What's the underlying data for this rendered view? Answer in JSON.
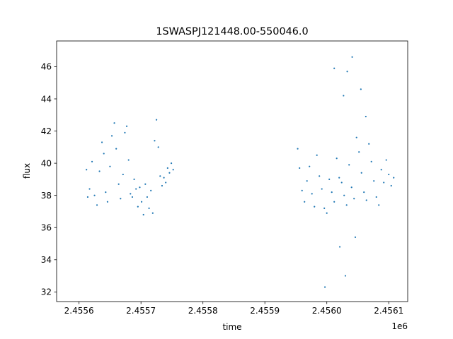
{
  "chart_data": {
    "type": "scatter",
    "title": "1SWASPJ121448.00-550046.0",
    "xlabel": "time",
    "ylabel": "flux",
    "x_offset_label": "1e6",
    "xlim": [
      2455563.8,
      2456130.6
    ],
    "ylim": [
      31.4,
      47.6
    ],
    "x_ticks": [
      2455600,
      2455700,
      2455800,
      2455900,
      2456000,
      2456100
    ],
    "x_tick_labels": [
      "2.4556",
      "2.4557",
      "2.4558",
      "2.4559",
      "2.4560",
      "2.4561"
    ],
    "y_ticks": [
      32,
      34,
      36,
      38,
      40,
      42,
      44,
      46
    ],
    "y_tick_labels": [
      "32",
      "34",
      "36",
      "38",
      "40",
      "42",
      "44",
      "46"
    ],
    "grid": false,
    "legend": "none",
    "marker_color": "#1f77b4",
    "series": [
      {
        "points": [
          [
            2455612,
            39.6
          ],
          [
            2455614,
            37.9
          ],
          [
            2455617,
            38.4
          ],
          [
            2455621,
            40.1
          ],
          [
            2455625,
            38.0
          ],
          [
            2455629,
            37.4
          ],
          [
            2455633,
            39.5
          ],
          [
            2455637,
            41.3
          ],
          [
            2455640,
            40.6
          ],
          [
            2455643,
            38.2
          ],
          [
            2455646,
            37.6
          ],
          [
            2455650,
            39.8
          ],
          [
            2455653,
            41.7
          ],
          [
            2455657,
            42.5
          ],
          [
            2455660,
            40.9
          ],
          [
            2455664,
            38.7
          ],
          [
            2455667,
            37.8
          ],
          [
            2455671,
            39.3
          ],
          [
            2455674,
            41.9
          ],
          [
            2455677,
            42.3
          ],
          [
            2455680,
            40.2
          ],
          [
            2455683,
            38.1
          ],
          [
            2455686,
            37.9
          ],
          [
            2455689,
            39.0
          ],
          [
            2455692,
            38.4
          ],
          [
            2455695,
            37.3
          ],
          [
            2455698,
            38.5
          ],
          [
            2455701,
            37.6
          ],
          [
            2455704,
            36.8
          ],
          [
            2455707,
            38.7
          ],
          [
            2455710,
            37.9
          ],
          [
            2455713,
            37.2
          ],
          [
            2455716,
            38.3
          ],
          [
            2455719,
            36.9
          ],
          [
            2455722,
            41.4
          ],
          [
            2455725,
            42.7
          ],
          [
            2455728,
            41.0
          ],
          [
            2455731,
            39.2
          ],
          [
            2455734,
            38.6
          ],
          [
            2455737,
            39.1
          ],
          [
            2455740,
            38.8
          ],
          [
            2455743,
            39.7
          ],
          [
            2455746,
            39.4
          ],
          [
            2455749,
            40.0
          ],
          [
            2455752,
            39.6
          ]
        ]
      },
      {
        "points": [
          [
            2455953,
            40.9
          ],
          [
            2455956,
            39.7
          ],
          [
            2455960,
            38.3
          ],
          [
            2455964,
            37.6
          ],
          [
            2455968,
            38.9
          ],
          [
            2455972,
            39.8
          ],
          [
            2455976,
            38.1
          ],
          [
            2455980,
            37.3
          ],
          [
            2455984,
            40.5
          ],
          [
            2455988,
            39.2
          ],
          [
            2455992,
            38.4
          ],
          [
            2455996,
            37.2
          ],
          [
            2456000,
            36.9
          ],
          [
            2456004,
            39.0
          ],
          [
            2456008,
            38.2
          ],
          [
            2456012,
            37.6
          ],
          [
            2456016,
            40.3
          ],
          [
            2456020,
            39.1
          ],
          [
            2456024,
            38.8
          ],
          [
            2456028,
            38.0
          ],
          [
            2456032,
            37.4
          ],
          [
            2456036,
            39.9
          ],
          [
            2456040,
            38.5
          ],
          [
            2456044,
            37.8
          ],
          [
            2456048,
            41.6
          ],
          [
            2456052,
            40.7
          ],
          [
            2456056,
            39.4
          ],
          [
            2456060,
            38.2
          ],
          [
            2456064,
            37.7
          ],
          [
            2456068,
            41.2
          ],
          [
            2456072,
            40.1
          ],
          [
            2456076,
            38.9
          ],
          [
            2456080,
            37.9
          ],
          [
            2456084,
            37.4
          ],
          [
            2456088,
            39.6
          ],
          [
            2456092,
            38.8
          ],
          [
            2456096,
            40.2
          ],
          [
            2456100,
            39.3
          ],
          [
            2456104,
            38.6
          ],
          [
            2456108,
            39.1
          ],
          [
            2456027,
            44.2
          ],
          [
            2456033,
            45.7
          ],
          [
            2456041,
            46.6
          ],
          [
            2456021,
            34.8
          ],
          [
            2456030,
            33.0
          ],
          [
            2456046,
            35.4
          ],
          [
            2456012,
            45.9
          ],
          [
            2455997,
            32.3
          ],
          [
            2456055,
            44.6
          ],
          [
            2456063,
            42.9
          ]
        ]
      }
    ]
  }
}
